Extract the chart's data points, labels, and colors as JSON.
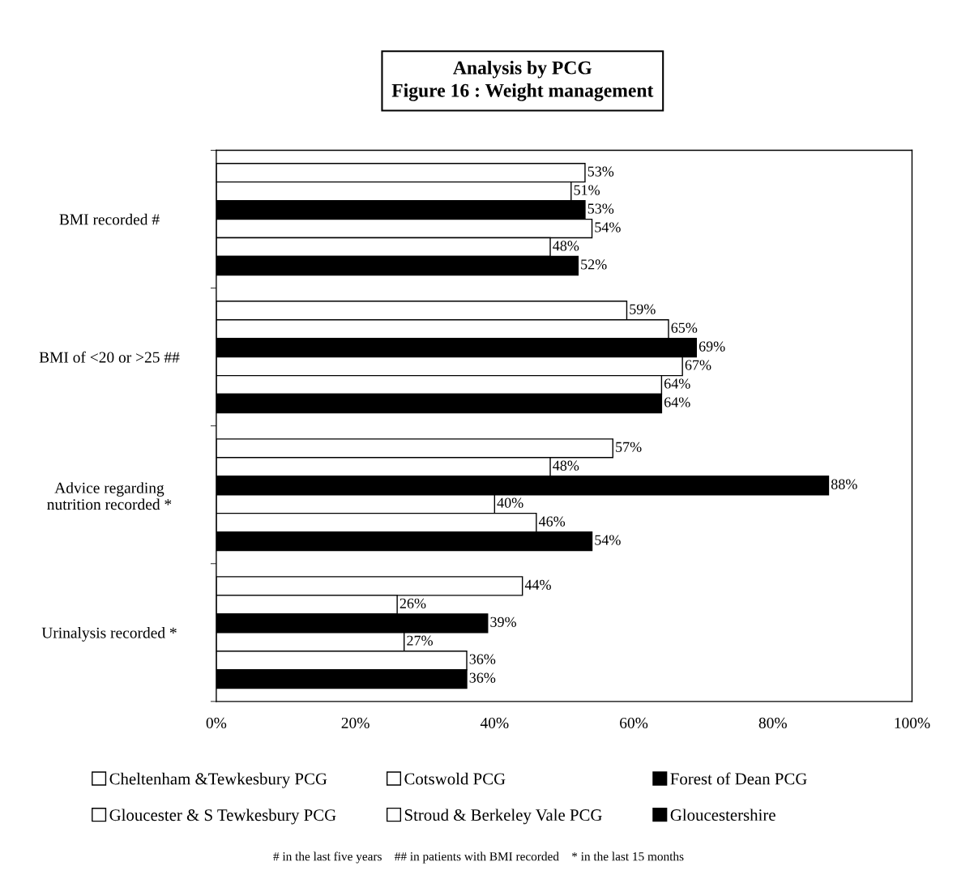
{
  "chart_data": {
    "type": "bar",
    "orientation": "horizontal",
    "title": "Analysis by PCG\nFigure 16 : Weight management",
    "categories": [
      "BMI recorded #",
      "BMI of <20 or >25 ##",
      "Advice regarding\nnutrition recorded *",
      "Urinalysis recorded *"
    ],
    "series": [
      {
        "name": "Cheltenham &Tewkesbury PCG",
        "color": "#ffffff",
        "values": [
          53,
          59,
          57,
          44
        ],
        "value_labels": [
          "53%",
          "59%",
          "57%",
          "44%"
        ]
      },
      {
        "name": "Cotswold PCG",
        "color": "#ffffff",
        "values": [
          51,
          65,
          48,
          26
        ],
        "value_labels": [
          "51%",
          "65%",
          "48%",
          "26%"
        ]
      },
      {
        "name": "Forest of Dean PCG",
        "color": "#000000",
        "values": [
          53,
          69,
          88,
          39
        ],
        "value_labels": [
          "53%",
          "69%",
          "88%",
          "39%"
        ]
      },
      {
        "name": "Gloucester & S Tewkesbury PCG",
        "color": "#ffffff",
        "values": [
          54,
          67,
          40,
          27
        ],
        "value_labels": [
          "54%",
          "67%",
          "40%",
          "27%"
        ]
      },
      {
        "name": "Stroud & Berkeley Vale PCG",
        "color": "#ffffff",
        "values": [
          48,
          64,
          46,
          36
        ],
        "value_labels": [
          "48%",
          "64%",
          "46%",
          "36%"
        ]
      },
      {
        "name": "Gloucestershire",
        "color": "#000000",
        "values": [
          52,
          64,
          54,
          36
        ],
        "value_labels": [
          "52%",
          "64%",
          "54%",
          "36%"
        ]
      }
    ],
    "xlim": [
      0,
      100
    ],
    "xticks": [
      {
        "value": 0,
        "label": "0%"
      },
      {
        "value": 20,
        "label": "20%"
      },
      {
        "value": 40,
        "label": "40%"
      },
      {
        "value": 60,
        "label": "60%"
      },
      {
        "value": 80,
        "label": "80%"
      },
      {
        "value": 100,
        "label": "100%"
      }
    ],
    "legend": "bottom",
    "grid": false,
    "annotations": [
      "# in the last five years    ## in patients with BMI recorded    * in the last 15 months"
    ]
  }
}
